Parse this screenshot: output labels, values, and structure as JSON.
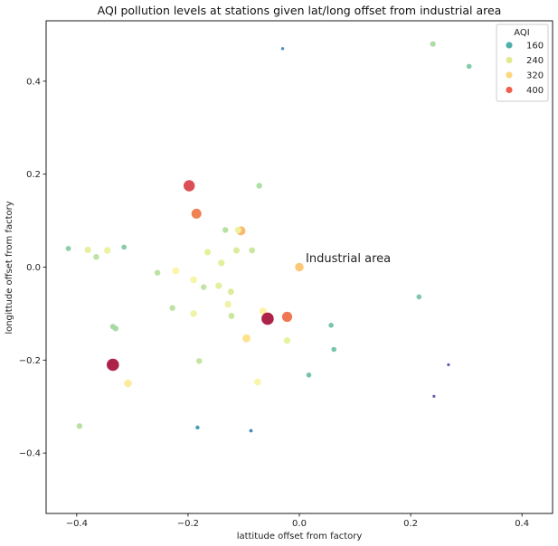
{
  "chart_data": {
    "type": "scatter",
    "title": "AQI pollution levels at stations given lat/long offset from industrial area",
    "xlabel": "lattitude offset from factory",
    "ylabel": "longittude offset from factory",
    "xlim": [
      -0.455,
      0.455
    ],
    "ylim": [
      -0.53,
      0.53
    ],
    "xticks": [
      -0.4,
      -0.2,
      0.0,
      0.2,
      0.4
    ],
    "xtick_labels": [
      "−0.4",
      "−0.2",
      "0.0",
      "0.2",
      "0.4"
    ],
    "yticks": [
      -0.4,
      -0.2,
      0.0,
      0.2,
      0.4
    ],
    "ytick_labels": [
      "−0.4",
      "−0.2",
      "0.0",
      "0.2",
      "0.4"
    ],
    "grid": false,
    "annotation": {
      "text": "Industrial area",
      "x": 0.01,
      "y": 0.0
    },
    "legend": {
      "title": "AQI",
      "placement": "top-right",
      "entries": [
        {
          "label": "160",
          "value": 160,
          "color": "#4fb0aa"
        },
        {
          "label": "240",
          "value": 240,
          "color": "#e2ea90"
        },
        {
          "label": "320",
          "value": 320,
          "color": "#fdd57e"
        },
        {
          "label": "400",
          "value": 400,
          "color": "#f0604a"
        }
      ]
    },
    "points": [
      {
        "x": -0.03,
        "y": 0.47,
        "aqi": 105,
        "color": "#3d88b8"
      },
      {
        "x": 0.24,
        "y": 0.48,
        "aqi": 205,
        "color": "#a8dba0"
      },
      {
        "x": 0.305,
        "y": 0.432,
        "aqi": 185,
        "color": "#7ec9a4"
      },
      {
        "x": -0.198,
        "y": 0.175,
        "aqi": 430,
        "color": "#d9444c"
      },
      {
        "x": -0.072,
        "y": 0.175,
        "aqi": 210,
        "color": "#abdda2"
      },
      {
        "x": -0.185,
        "y": 0.115,
        "aqi": 380,
        "color": "#ef7a4a"
      },
      {
        "x": -0.105,
        "y": 0.078,
        "aqi": 340,
        "color": "#fbb566"
      },
      {
        "x": -0.11,
        "y": 0.08,
        "aqi": 250,
        "color": "#eef2a0"
      },
      {
        "x": -0.133,
        "y": 0.08,
        "aqi": 210,
        "color": "#b3df9e"
      },
      {
        "x": -0.415,
        "y": 0.04,
        "aqi": 190,
        "color": "#88cca4"
      },
      {
        "x": -0.38,
        "y": 0.037,
        "aqi": 240,
        "color": "#e4ef98"
      },
      {
        "x": -0.345,
        "y": 0.036,
        "aqi": 245,
        "color": "#eaf29d"
      },
      {
        "x": -0.315,
        "y": 0.043,
        "aqi": 185,
        "color": "#7fc9a5"
      },
      {
        "x": -0.365,
        "y": 0.022,
        "aqi": 215,
        "color": "#b7e19f"
      },
      {
        "x": -0.165,
        "y": 0.032,
        "aqi": 240,
        "color": "#e4ef98"
      },
      {
        "x": -0.113,
        "y": 0.036,
        "aqi": 235,
        "color": "#d9ec97"
      },
      {
        "x": -0.085,
        "y": 0.036,
        "aqi": 225,
        "color": "#c8e69a"
      },
      {
        "x": -0.14,
        "y": 0.009,
        "aqi": 240,
        "color": "#e1ee97"
      },
      {
        "x": 0.0,
        "y": 0.0,
        "aqi": 320,
        "color": "#fdc46e"
      },
      {
        "x": -0.255,
        "y": -0.012,
        "aqi": 215,
        "color": "#b8e19f"
      },
      {
        "x": -0.222,
        "y": -0.008,
        "aqi": 270,
        "color": "#fdf4a8"
      },
      {
        "x": -0.19,
        "y": -0.027,
        "aqi": 255,
        "color": "#f3f5a4"
      },
      {
        "x": -0.145,
        "y": -0.04,
        "aqi": 240,
        "color": "#e2ee98"
      },
      {
        "x": -0.172,
        "y": -0.043,
        "aqi": 215,
        "color": "#bde39e"
      },
      {
        "x": -0.123,
        "y": -0.053,
        "aqi": 235,
        "color": "#dbec97"
      },
      {
        "x": 0.215,
        "y": -0.064,
        "aqi": 180,
        "color": "#76c5a5"
      },
      {
        "x": -0.128,
        "y": -0.08,
        "aqi": 250,
        "color": "#eef2a0"
      },
      {
        "x": -0.228,
        "y": -0.088,
        "aqi": 215,
        "color": "#b9e19f"
      },
      {
        "x": -0.065,
        "y": -0.095,
        "aqi": 270,
        "color": "#fdf0a2"
      },
      {
        "x": -0.19,
        "y": -0.1,
        "aqi": 250,
        "color": "#eef2a0"
      },
      {
        "x": -0.122,
        "y": -0.105,
        "aqi": 225,
        "color": "#c7e69a"
      },
      {
        "x": -0.057,
        "y": -0.111,
        "aqi": 475,
        "color": "#a8163f"
      },
      {
        "x": -0.022,
        "y": -0.107,
        "aqi": 390,
        "color": "#ee7149"
      },
      {
        "x": -0.335,
        "y": -0.128,
        "aqi": 205,
        "color": "#a4d9a1"
      },
      {
        "x": -0.33,
        "y": -0.132,
        "aqi": 205,
        "color": "#a4d9a1"
      },
      {
        "x": 0.057,
        "y": -0.125,
        "aqi": 180,
        "color": "#70c2a6"
      },
      {
        "x": -0.095,
        "y": -0.153,
        "aqi": 310,
        "color": "#fde08a"
      },
      {
        "x": -0.022,
        "y": -0.158,
        "aqi": 245,
        "color": "#e8f19c"
      },
      {
        "x": 0.062,
        "y": -0.177,
        "aqi": 180,
        "color": "#70c2a6"
      },
      {
        "x": -0.18,
        "y": -0.202,
        "aqi": 220,
        "color": "#c2e49c"
      },
      {
        "x": -0.335,
        "y": -0.21,
        "aqi": 475,
        "color": "#a8163f"
      },
      {
        "x": 0.268,
        "y": -0.21,
        "aqi": 95,
        "color": "#5b55a3"
      },
      {
        "x": 0.017,
        "y": -0.232,
        "aqi": 180,
        "color": "#6ec1a6"
      },
      {
        "x": -0.308,
        "y": -0.25,
        "aqi": 290,
        "color": "#fee99a"
      },
      {
        "x": -0.075,
        "y": -0.247,
        "aqi": 265,
        "color": "#f9f4a8"
      },
      {
        "x": 0.242,
        "y": -0.278,
        "aqi": 95,
        "color": "#5b55a3"
      },
      {
        "x": -0.395,
        "y": -0.342,
        "aqi": 215,
        "color": "#b6e0a0"
      },
      {
        "x": -0.183,
        "y": -0.345,
        "aqi": 140,
        "color": "#3c98b3"
      },
      {
        "x": -0.087,
        "y": -0.352,
        "aqi": 120,
        "color": "#3a83b5"
      }
    ]
  }
}
